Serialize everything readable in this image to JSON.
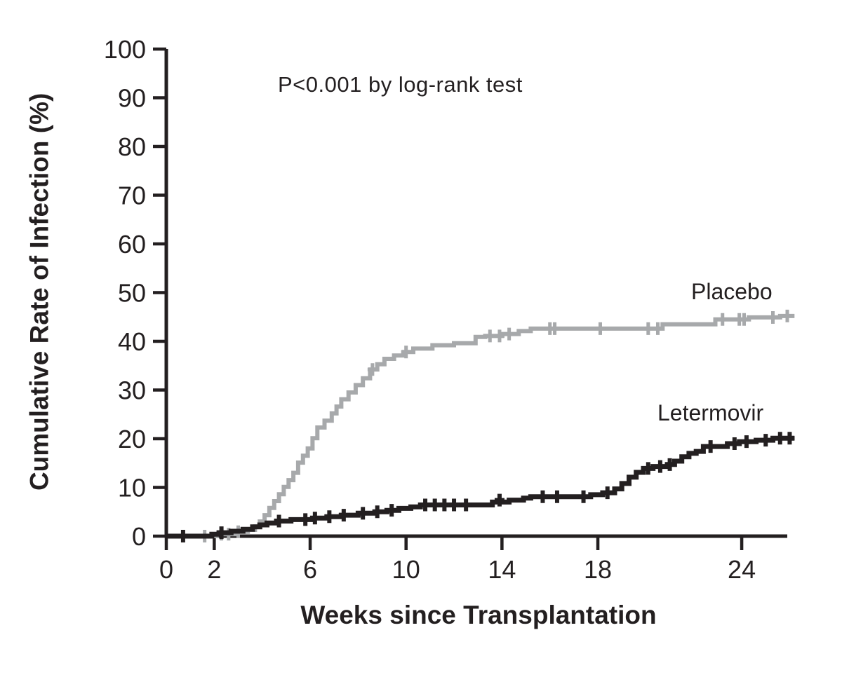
{
  "colors": {
    "background": "#ffffff",
    "text": "#231f20",
    "axis": "#231f20",
    "placebo": "#a7a9ab",
    "letermovir": "#231f20"
  },
  "chart_data": {
    "type": "line",
    "subtype": "kaplan-meier-step",
    "title": "",
    "annotation": "P<0.001 by log-rank test",
    "xlabel": "Weeks since Transplantation",
    "ylabel": "Cumulative Rate of Infection (%)",
    "xlim": [
      0,
      26
    ],
    "ylim": [
      0,
      100
    ],
    "xticks": [
      0,
      2,
      6,
      10,
      14,
      18,
      24
    ],
    "yticks": [
      0,
      10,
      20,
      30,
      40,
      50,
      60,
      70,
      80,
      90,
      100
    ],
    "grid": false,
    "legend_position": "inline-labels-right",
    "series": [
      {
        "name": "Placebo",
        "color": "#a7a9ab",
        "points": [
          [
            0,
            0
          ],
          [
            1.5,
            0
          ],
          [
            2.1,
            0.4
          ],
          [
            2.9,
            0.9
          ],
          [
            3.4,
            1.3
          ],
          [
            3.7,
            2.0
          ],
          [
            3.9,
            3.0
          ],
          [
            4.1,
            4.3
          ],
          [
            4.3,
            5.8
          ],
          [
            4.5,
            7.2
          ],
          [
            4.7,
            8.6
          ],
          [
            4.9,
            10.1
          ],
          [
            5.1,
            11.5
          ],
          [
            5.3,
            13.0
          ],
          [
            5.5,
            15.1
          ],
          [
            5.7,
            16.5
          ],
          [
            5.9,
            18.0
          ],
          [
            6.1,
            20.1
          ],
          [
            6.3,
            22.3
          ],
          [
            6.6,
            23.7
          ],
          [
            6.9,
            25.2
          ],
          [
            7.1,
            26.6
          ],
          [
            7.3,
            28.1
          ],
          [
            7.6,
            29.5
          ],
          [
            7.9,
            31.0
          ],
          [
            8.2,
            32.4
          ],
          [
            8.5,
            34.2
          ],
          [
            8.8,
            35.3
          ],
          [
            9.1,
            36.4
          ],
          [
            9.5,
            37.1
          ],
          [
            9.9,
            37.8
          ],
          [
            10.3,
            38.5
          ],
          [
            11.1,
            39.2
          ],
          [
            12.0,
            39.6
          ],
          [
            12.9,
            40.9
          ],
          [
            13.3,
            41.1
          ],
          [
            14.0,
            41.5
          ],
          [
            14.7,
            42.1
          ],
          [
            15.2,
            42.6
          ],
          [
            20.7,
            43.5
          ],
          [
            22.9,
            44.5
          ],
          [
            24.3,
            44.9
          ],
          [
            25.6,
            45.2
          ],
          [
            26.2,
            45.2
          ]
        ],
        "censor_marks": [
          [
            1.6,
            0
          ],
          [
            2.3,
            0.4
          ],
          [
            2.6,
            0.4
          ],
          [
            3.0,
            0.9
          ],
          [
            8.6,
            34.2
          ],
          [
            10.0,
            37.8
          ],
          [
            13.5,
            41.1
          ],
          [
            13.9,
            41.1
          ],
          [
            14.3,
            41.5
          ],
          [
            16.0,
            42.6
          ],
          [
            16.2,
            42.6
          ],
          [
            18.1,
            42.6
          ],
          [
            20.1,
            42.6
          ],
          [
            20.5,
            42.6
          ],
          [
            23.2,
            44.5
          ],
          [
            23.9,
            44.5
          ],
          [
            24.1,
            44.5
          ],
          [
            25.3,
            44.9
          ],
          [
            25.9,
            45.2
          ]
        ]
      },
      {
        "name": "Letermovir",
        "color": "#231f20",
        "points": [
          [
            0,
            0
          ],
          [
            0.9,
            0
          ],
          [
            1.9,
            0.4
          ],
          [
            2.2,
            0.7
          ],
          [
            2.7,
            1.0
          ],
          [
            3.2,
            1.4
          ],
          [
            3.6,
            1.9
          ],
          [
            3.9,
            2.3
          ],
          [
            4.2,
            2.7
          ],
          [
            4.6,
            3.1
          ],
          [
            5.2,
            3.4
          ],
          [
            6.1,
            3.7
          ],
          [
            6.7,
            4.0
          ],
          [
            7.3,
            4.3
          ],
          [
            8.0,
            4.7
          ],
          [
            8.7,
            5.0
          ],
          [
            9.2,
            5.3
          ],
          [
            9.7,
            5.7
          ],
          [
            10.2,
            6.0
          ],
          [
            10.6,
            6.4
          ],
          [
            13.6,
            7.0
          ],
          [
            14.3,
            7.4
          ],
          [
            14.9,
            7.8
          ],
          [
            15.2,
            8.1
          ],
          [
            17.7,
            8.5
          ],
          [
            18.2,
            8.9
          ],
          [
            18.7,
            9.7
          ],
          [
            19.0,
            10.8
          ],
          [
            19.3,
            12.1
          ],
          [
            19.6,
            13.1
          ],
          [
            19.9,
            13.9
          ],
          [
            20.3,
            14.3
          ],
          [
            20.9,
            14.7
          ],
          [
            21.2,
            15.4
          ],
          [
            21.5,
            16.3
          ],
          [
            21.8,
            17.0
          ],
          [
            22.1,
            17.4
          ],
          [
            22.4,
            18.4
          ],
          [
            23.4,
            19.0
          ],
          [
            23.9,
            19.4
          ],
          [
            24.6,
            19.7
          ],
          [
            25.3,
            20.1
          ],
          [
            26.2,
            20.1
          ]
        ],
        "censor_marks": [
          [
            0.7,
            0
          ],
          [
            2.3,
            0.7
          ],
          [
            4.7,
            3.1
          ],
          [
            5.8,
            3.4
          ],
          [
            6.2,
            3.7
          ],
          [
            6.8,
            4.0
          ],
          [
            7.4,
            4.3
          ],
          [
            8.2,
            4.7
          ],
          [
            8.8,
            5.0
          ],
          [
            9.4,
            5.3
          ],
          [
            10.8,
            6.4
          ],
          [
            11.2,
            6.4
          ],
          [
            11.6,
            6.4
          ],
          [
            12.0,
            6.4
          ],
          [
            12.5,
            6.4
          ],
          [
            13.9,
            7.4
          ],
          [
            15.7,
            8.1
          ],
          [
            16.3,
            8.1
          ],
          [
            17.4,
            8.1
          ],
          [
            18.4,
            8.9
          ],
          [
            20.1,
            13.9
          ],
          [
            20.6,
            14.3
          ],
          [
            21.0,
            14.7
          ],
          [
            22.7,
            18.4
          ],
          [
            23.7,
            19.0
          ],
          [
            24.2,
            19.4
          ],
          [
            25.0,
            19.7
          ],
          [
            25.6,
            20.1
          ],
          [
            26.0,
            20.1
          ]
        ]
      }
    ]
  }
}
